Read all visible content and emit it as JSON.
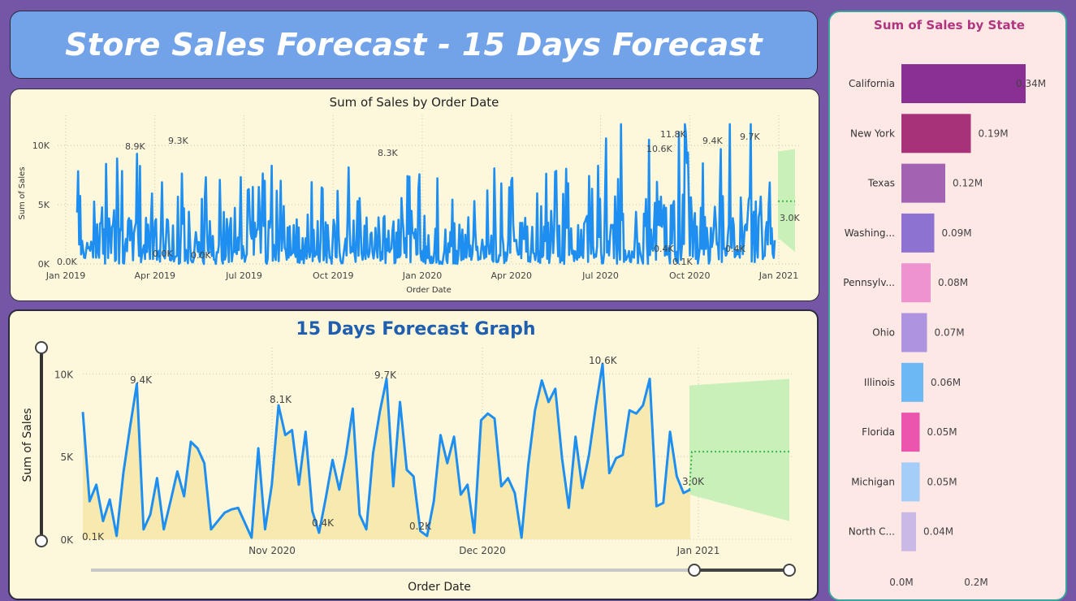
{
  "header": {
    "title": "Store Sales Forecast - 15 Days Forecast"
  },
  "colors": {
    "line": "#1e8ff0",
    "forecast_band": "#c9f0b8",
    "forecast_line": "#3cb84a",
    "area_fill": "#f7e6a6",
    "title_blue": "#1f5fae",
    "side_title": "#b0357f"
  },
  "chart_data": [
    {
      "id": "sales_by_order_date",
      "type": "line",
      "title": "Sum of Sales by Order Date",
      "xlabel": "Order Date",
      "ylabel": "Sum of Sales",
      "x_ticks": [
        "Jan 2019",
        "Apr 2019",
        "Jul 2019",
        "Oct 2019",
        "Jan 2020",
        "Apr 2020",
        "Jul 2020",
        "Oct 2020",
        "Jan 2021"
      ],
      "y_ticks": [
        "0K",
        "5K",
        "10K"
      ],
      "ylim": [
        0,
        12000
      ],
      "grid": true,
      "data_labels": [
        "0.0K",
        "8.9K",
        "9.3K",
        "0.0K",
        "0.0K",
        "8.3K",
        "10.6K",
        "11.8K",
        "9.4K",
        "9.7K",
        "0.4K",
        "0.1K",
        "0.4K",
        "3.0K"
      ],
      "forecast": {
        "upper": 9500,
        "lower": 1000,
        "mid": 5300,
        "last_actual": 3000
      }
    },
    {
      "id": "forecast_graph",
      "type": "area",
      "title": "15 Days Forecast Graph",
      "xlabel": "Order Date",
      "ylabel": "Sum of Sales",
      "x_ticks": [
        "Nov 2020",
        "Dec 2020",
        "Jan 2021"
      ],
      "y_ticks": [
        "0K",
        "5K",
        "10K"
      ],
      "ylim": [
        0,
        11000
      ],
      "grid": true,
      "series": [
        {
          "values": [
            7700,
            2300,
            3300,
            1100,
            2400,
            200,
            4000,
            6800,
            9400,
            600,
            1500,
            3700,
            600,
            2300,
            4100,
            2600,
            5900,
            5500,
            4600,
            600,
            1100,
            1600,
            1800,
            1900,
            1000,
            100,
            5500,
            600,
            3300,
            8100,
            6300,
            6600,
            3300,
            6500,
            1700,
            400,
            2500,
            4800,
            3000,
            5100,
            7900,
            1500,
            600,
            5200,
            7700,
            9700,
            3200,
            8300,
            4200,
            3800,
            500,
            200,
            2300,
            6300,
            4600,
            6200,
            2700,
            3300,
            400,
            7200,
            7600,
            7300,
            3200,
            3700,
            2800,
            100,
            4500,
            7800,
            9600,
            8300,
            9100,
            4900,
            1900,
            6200,
            3100,
            5100,
            8000,
            10600,
            4000,
            4900,
            5100,
            7800,
            7600,
            8100,
            9700,
            2000,
            2200,
            6500,
            3800,
            2800,
            3000
          ]
        }
      ],
      "data_labels": [
        "0.1K",
        "9.4K",
        "8.1K",
        "0.4K",
        "9.7K",
        "0.2K",
        "10.6K",
        "3.0K"
      ],
      "forecast": {
        "upper": 9700,
        "lower": 1100,
        "mid": 5300
      }
    },
    {
      "id": "sales_by_state",
      "type": "bar",
      "title": "Sum of Sales by State",
      "categories": [
        "California",
        "New York",
        "Texas",
        "Washing...",
        "Pennsylv...",
        "Ohio",
        "Illinois",
        "Florida",
        "Michigan",
        "North C..."
      ],
      "values": [
        0.34,
        0.19,
        0.12,
        0.09,
        0.08,
        0.07,
        0.06,
        0.05,
        0.05,
        0.04
      ],
      "value_labels": [
        "0.34M",
        "0.19M",
        "0.12M",
        "0.09M",
        "0.08M",
        "0.07M",
        "0.06M",
        "0.05M",
        "0.05M",
        "0.04M"
      ],
      "bar_colors": [
        "#8a2f94",
        "#a83279",
        "#a463b2",
        "#8e72d1",
        "#ee93cf",
        "#ad93e0",
        "#6cb8f5",
        "#ec55ae",
        "#a4cdf7",
        "#cab8e6"
      ],
      "x_ticks": [
        "0.0M",
        "0.2M"
      ],
      "xlim": [
        0,
        0.34
      ]
    }
  ]
}
